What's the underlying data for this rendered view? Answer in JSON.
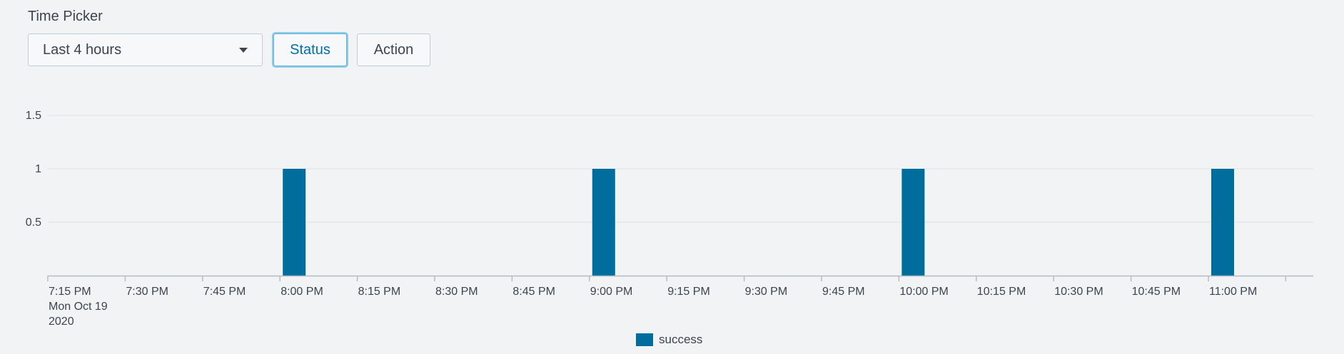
{
  "time_picker": {
    "label": "Time Picker",
    "selected": "Last 4 hours"
  },
  "buttons": {
    "status": "Status",
    "action": "Action"
  },
  "colors": {
    "series": "#006d9c",
    "gridline": "#dfe2e6",
    "axis": "#b5bcc4",
    "accent": "#5fb3dc"
  },
  "chart_data": {
    "type": "bar",
    "x": [
      "7:15 PM",
      "7:30 PM",
      "7:45 PM",
      "8:00 PM",
      "8:15 PM",
      "8:30 PM",
      "8:45 PM",
      "9:00 PM",
      "9:15 PM",
      "9:30 PM",
      "9:45 PM",
      "10:00 PM",
      "10:15 PM",
      "10:30 PM",
      "10:45 PM",
      "11:00 PM"
    ],
    "x_date_label": [
      "Mon Oct 19",
      "2020"
    ],
    "y_ticks": [
      "0.5",
      "1",
      "1.5"
    ],
    "ylim": [
      0,
      1.5
    ],
    "series": [
      {
        "name": "success",
        "points": [
          {
            "x": "8:00 PM",
            "y": 1
          },
          {
            "x": "9:00 PM",
            "y": 1
          },
          {
            "x": "10:00 PM",
            "y": 1
          },
          {
            "x": "11:00 PM",
            "y": 1
          }
        ]
      }
    ],
    "grid": true,
    "legend": "bottom"
  }
}
